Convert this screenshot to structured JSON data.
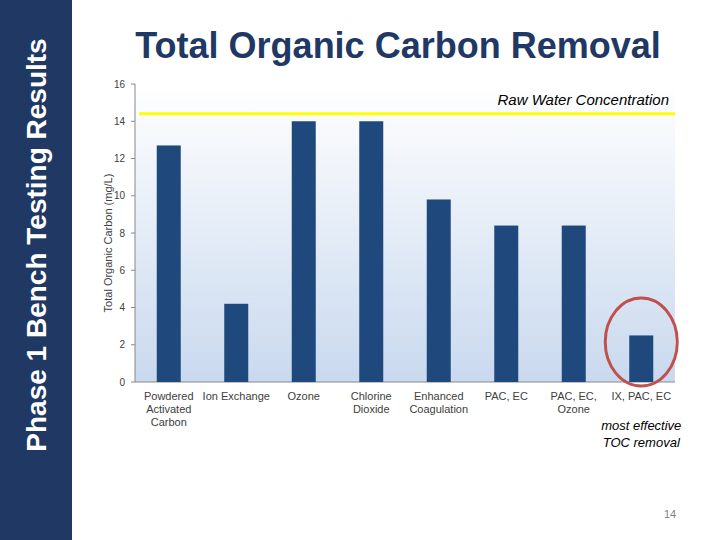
{
  "page": {
    "banner": "Phase 1 Bench Testing Results",
    "page_number": 14
  },
  "chart_data": {
    "type": "bar",
    "title": "Total Organic Carbon Removal",
    "y_label": "Total Organic Carbon (mg/L)",
    "categories": [
      "Powdered Activated Carbon",
      "Ion Exchange",
      "Ozone",
      "Chlorine Dioxide",
      "Enhanced Coagulation",
      "PAC, EC",
      "PAC, EC, Ozone",
      "IX, PAC, EC"
    ],
    "values": [
      12.7,
      4.2,
      14.0,
      14.0,
      9.8,
      8.4,
      8.4,
      2.5
    ],
    "color": "#1f497d",
    "ylim": [
      0,
      16
    ],
    "yticks": [
      0,
      2,
      4,
      6,
      8,
      10,
      12,
      14,
      16
    ],
    "grid": false,
    "reference_line": {
      "value": 14.4,
      "label": "Raw Water Concentration",
      "color": "#ffff00"
    },
    "annotations": [
      {
        "text": "most effective TOC removal",
        "category": "IX, PAC, EC",
        "color": "#c0504d"
      }
    ]
  }
}
